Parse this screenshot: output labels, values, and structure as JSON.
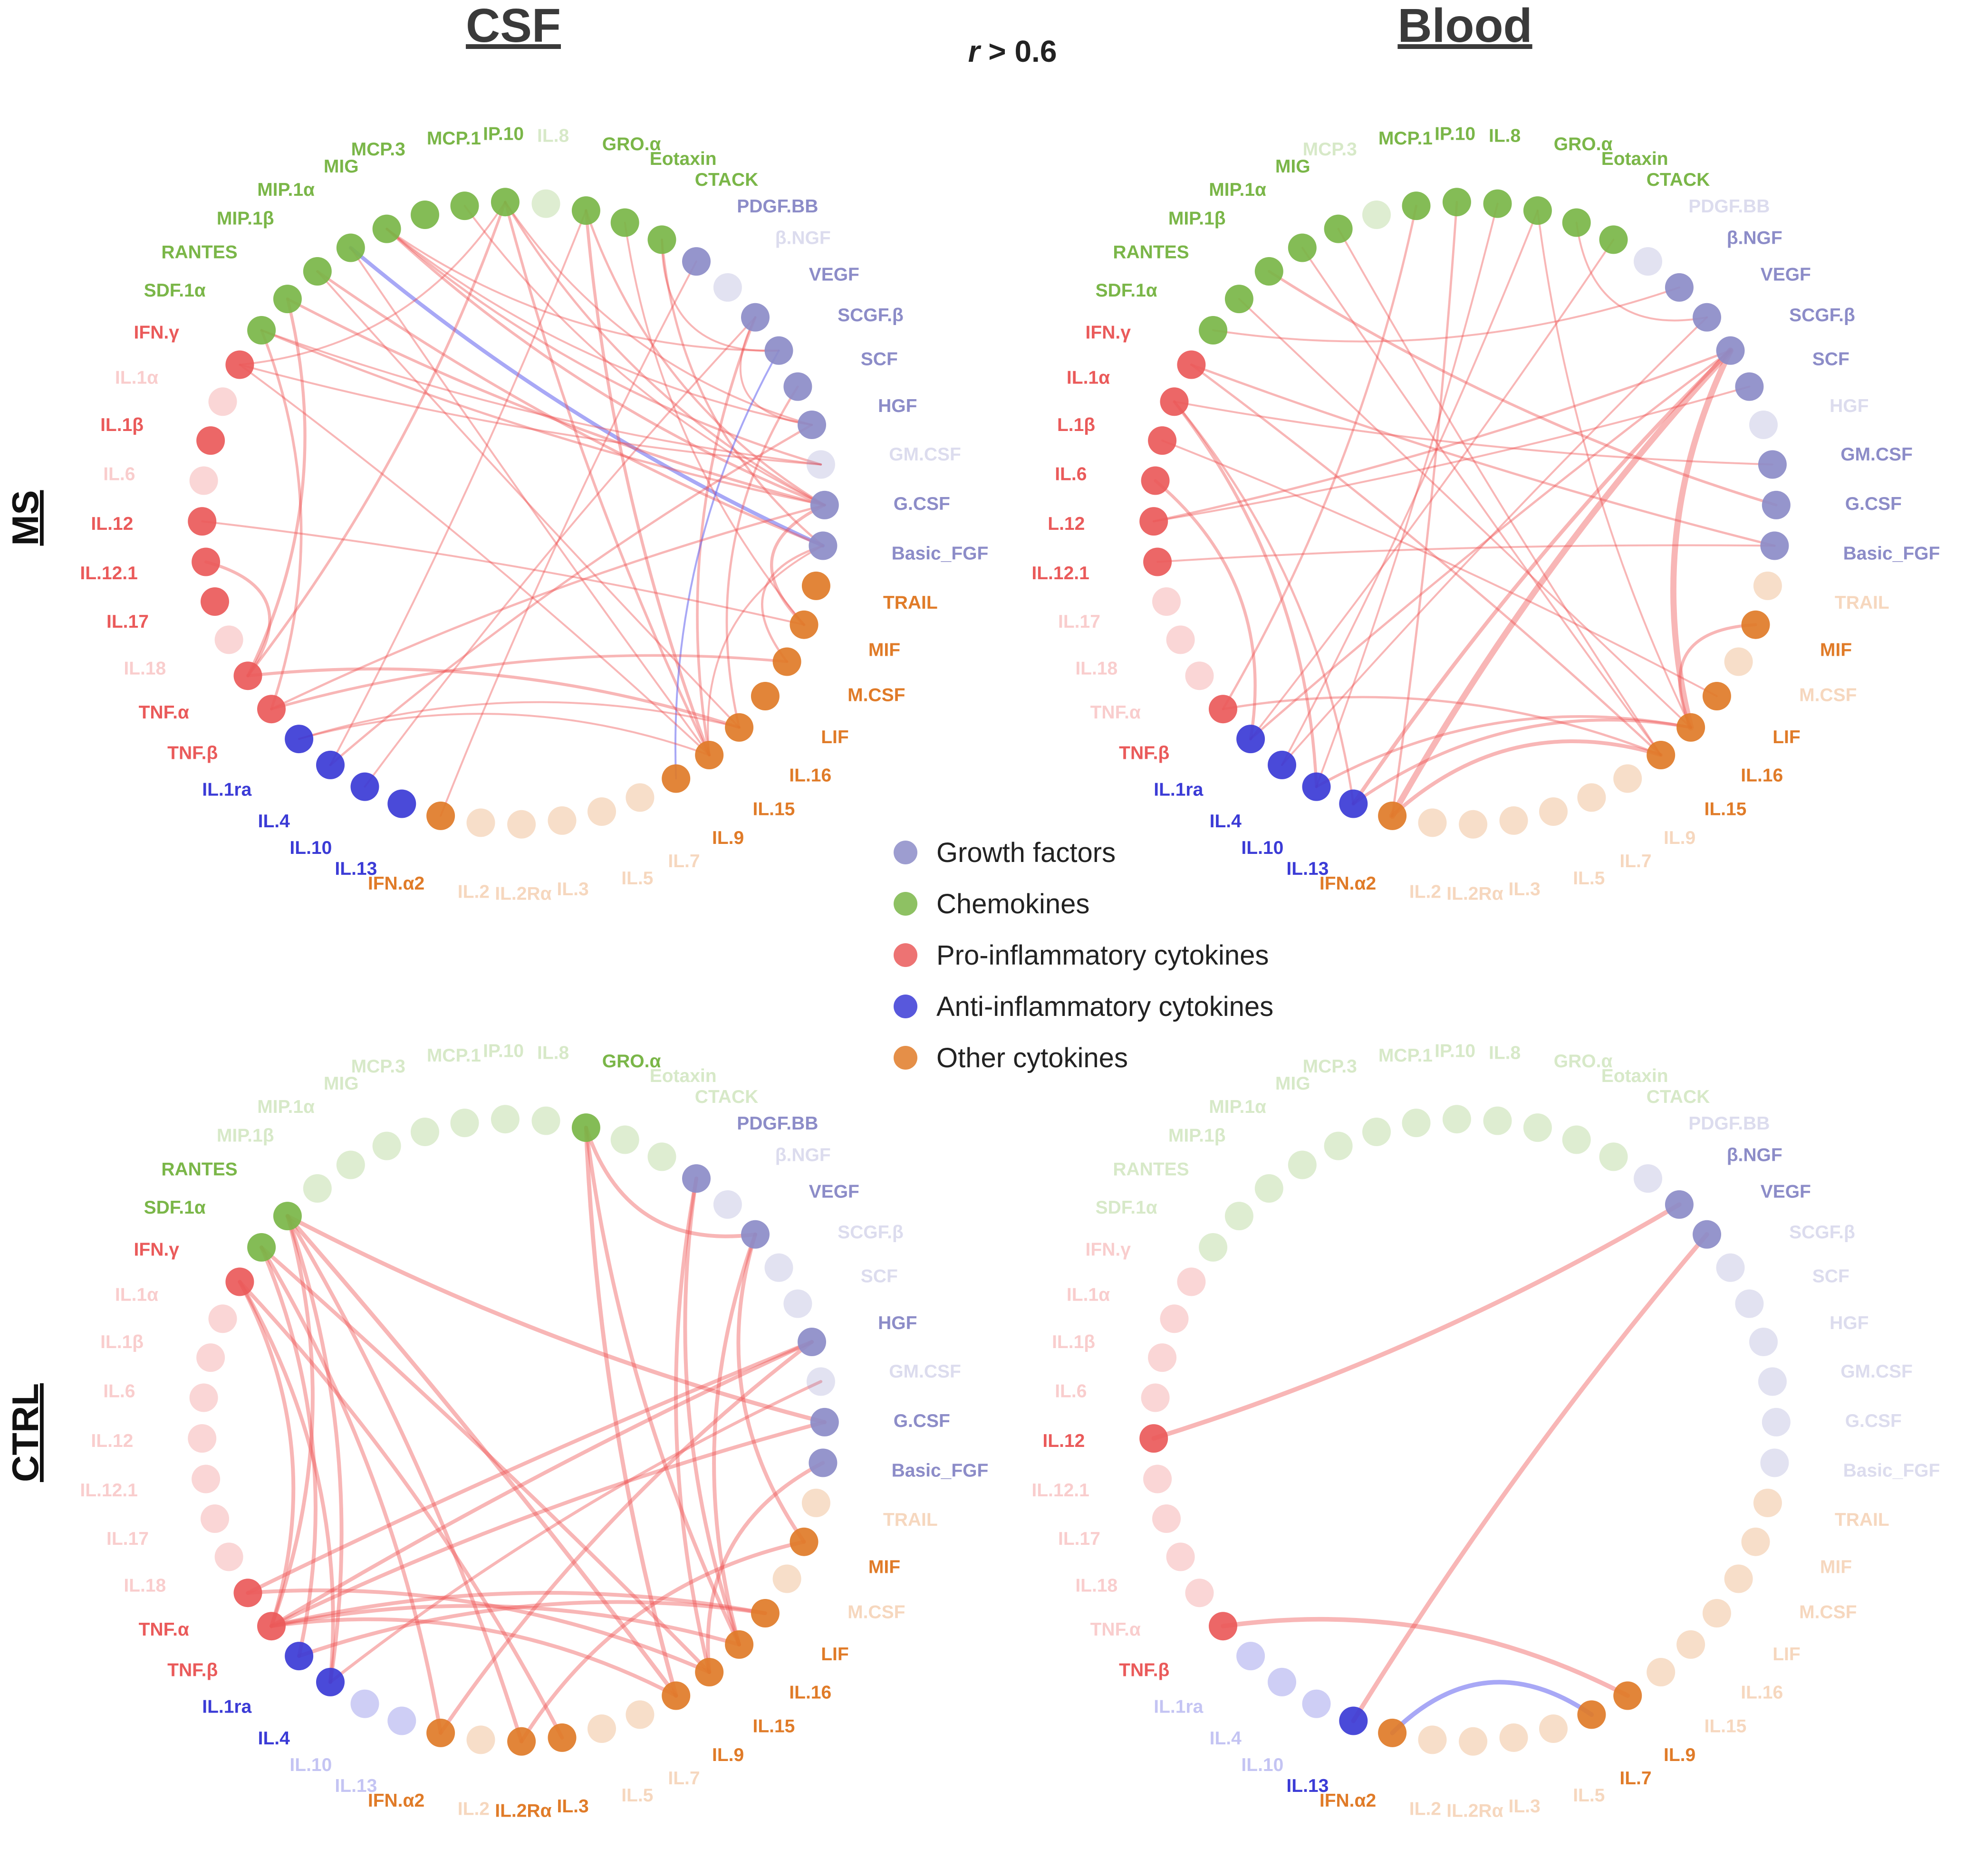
{
  "header": {
    "col_csf": "CSF",
    "col_blood": "Blood",
    "threshold_var": "r",
    "threshold_text": " > 0.6",
    "row_ms": "MS",
    "row_ctrl": "CTRL"
  },
  "legend": [
    {
      "label": "Growth factors",
      "color": "#8c8cc8"
    },
    {
      "label": "Chemokines",
      "color": "#7ab648"
    },
    {
      "label": "Pro-inflammatory cytokines",
      "color": "#ea5a5a"
    },
    {
      "label": "Anti-inflammatory cytokines",
      "color": "#3b3bd6"
    },
    {
      "label": "Other cytokines",
      "color": "#e07b28"
    }
  ],
  "colors": {
    "gf": "#8c8cc8",
    "chem": "#7ab648",
    "pro": "#ea5a5a",
    "anti": "#3b3bd6",
    "other": "#e07b28",
    "edge_pos": "#ee5050",
    "edge_neg": "#6060ee"
  },
  "node_names": {
    "csf": [
      "MCP.1",
      "IP.10",
      "IL.8",
      "GRO.α",
      "Eotaxin",
      "CTACK",
      "PDGF.BB",
      "β.NGF",
      "VEGF",
      "SCGF.β",
      "SCF",
      "HGF",
      "GM.CSF",
      "G.CSF",
      "Basic_FGF",
      "TRAIL",
      "MIF",
      "M.CSF",
      "LIF",
      "IL.16",
      "IL.15",
      "IL.9",
      "IL.7",
      "IL.5",
      "IL.3",
      "IL.2Rα",
      "IL.2",
      "IFN.α2",
      "IL.13",
      "IL.10",
      "IL.4",
      "IL.1ra",
      "TNF.β",
      "TNF.α",
      "IL.18",
      "IL.17",
      "IL.12.1",
      "IL.12",
      "IL.6",
      "IL.1β",
      "IL.1α",
      "IFN.γ",
      "SDF.1α",
      "RANTES",
      "MIP.1β",
      "MIP.1α",
      "MIG",
      "MCP.3"
    ],
    "blood": [
      "MCP.1",
      "IP.10",
      "IL.8",
      "GRO.α",
      "Eotaxin",
      "CTACK",
      "PDGF.BB",
      "β.NGF",
      "VEGF",
      "SCGF.β",
      "SCF",
      "HGF",
      "GM.CSF",
      "G.CSF",
      "Basic_FGF",
      "TRAIL",
      "MIF",
      "M.CSF",
      "LIF",
      "IL.16",
      "IL.15",
      "IL.9",
      "IL.7",
      "IL.5",
      "IL.3",
      "IL.2Rα",
      "IL.2",
      "IFN.α2",
      "IL.13",
      "IL.10",
      "IL.4",
      "IL.1ra",
      "TNF.β",
      "TNF.α",
      "IL.18",
      "IL.17",
      "IL.12.1",
      "L.12",
      "IL.6",
      "L.1β",
      "IL.1α",
      "IFN.γ",
      "SDF.1α",
      "RANTES",
      "MIP.1β",
      "MIP.1α",
      "MIG",
      "MCP.3"
    ],
    "blood_ctrl": [
      "MCP.1",
      "IP.10",
      "IL.8",
      "GRO.α",
      "Eotaxin",
      "CTACK",
      "PDGF.BB",
      "β.NGF",
      "VEGF",
      "SCGF.β",
      "SCF",
      "HGF",
      "GM.CSF",
      "G.CSF",
      "Basic_FGF",
      "TRAIL",
      "MIF",
      "M.CSF",
      "LIF",
      "IL.16",
      "IL.15",
      "IL.9",
      "IL.7",
      "IL.5",
      "IL.3",
      "IL.2Rα",
      "IL.2",
      "IFN.α2",
      "IL.13",
      "IL.10",
      "IL.4",
      "IL.1ra",
      "TNF.β",
      "TNF.α",
      "IL.18",
      "IL.17",
      "IL.12.1",
      "IL.12",
      "IL.6",
      "IL.1β",
      "IL.1α",
      "IFN.γ",
      "SDF.1α",
      "RANTES",
      "MIP.1β",
      "MIP.1α",
      "MIG",
      "MCP.3"
    ]
  },
  "node_groups": [
    "chem",
    "chem",
    "chem",
    "chem",
    "chem",
    "chem",
    "gf",
    "gf",
    "gf",
    "gf",
    "gf",
    "gf",
    "gf",
    "gf",
    "gf",
    "other",
    "other",
    "other",
    "other",
    "other",
    "other",
    "other",
    "other",
    "other",
    "other",
    "other",
    "other",
    "other",
    "anti",
    "anti",
    "anti",
    "anti",
    "pro",
    "pro",
    "pro",
    "pro",
    "pro",
    "pro",
    "pro",
    "pro",
    "pro",
    "pro",
    "chem",
    "chem",
    "chem",
    "chem",
    "chem",
    "chem"
  ],
  "panels": [
    {
      "id": "ms-csf",
      "names": "csf",
      "active": [
        0,
        1,
        3,
        4,
        5,
        6,
        8,
        9,
        10,
        11,
        13,
        14,
        15,
        16,
        17,
        18,
        19,
        20,
        21,
        27,
        28,
        29,
        30,
        31,
        32,
        33,
        35,
        36,
        37,
        39,
        41,
        42,
        43,
        44,
        45,
        46,
        47
      ],
      "edges": [
        {
          "a": 45,
          "b": 14,
          "w": 2,
          "s": "neg"
        },
        {
          "a": 46,
          "b": 13,
          "w": 1.4,
          "s": "pos"
        },
        {
          "a": 46,
          "b": 12,
          "w": 1.2,
          "s": "pos"
        },
        {
          "a": 46,
          "b": 11,
          "w": 1,
          "s": "pos"
        },
        {
          "a": 46,
          "b": 9,
          "w": 1,
          "s": "pos"
        },
        {
          "a": 1,
          "b": 13,
          "w": 1.2,
          "s": "pos"
        },
        {
          "a": 1,
          "b": 11,
          "w": 1,
          "s": "pos"
        },
        {
          "a": 1,
          "b": 33,
          "w": 1.4,
          "s": "pos"
        },
        {
          "a": 1,
          "b": 41,
          "w": 1,
          "s": "pos"
        },
        {
          "a": 1,
          "b": 20,
          "w": 1.4,
          "s": "pos"
        },
        {
          "a": 3,
          "b": 20,
          "w": 1.6,
          "s": "pos"
        },
        {
          "a": 3,
          "b": 13,
          "w": 1.2,
          "s": "pos"
        },
        {
          "a": 3,
          "b": 30,
          "w": 1,
          "s": "pos"
        },
        {
          "a": 4,
          "b": 16,
          "w": 1,
          "s": "pos"
        },
        {
          "a": 5,
          "b": 14,
          "w": 1.2,
          "s": "pos"
        },
        {
          "a": 5,
          "b": 9,
          "w": 1,
          "s": "pos"
        },
        {
          "a": 8,
          "b": 20,
          "w": 1.4,
          "s": "pos"
        },
        {
          "a": 8,
          "b": 29,
          "w": 1,
          "s": "pos"
        },
        {
          "a": 8,
          "b": 11,
          "w": 1,
          "s": "pos"
        },
        {
          "a": 9,
          "b": 21,
          "w": 1,
          "s": "neg"
        },
        {
          "a": 10,
          "b": 19,
          "w": 1.2,
          "s": "pos"
        },
        {
          "a": 11,
          "b": 30,
          "w": 1.2,
          "s": "pos"
        },
        {
          "a": 13,
          "b": 16,
          "w": 1.6,
          "s": "pos"
        },
        {
          "a": 13,
          "b": 32,
          "w": 1.2,
          "s": "pos"
        },
        {
          "a": 13,
          "b": 42,
          "w": 1.2,
          "s": "pos"
        },
        {
          "a": 12,
          "b": 41,
          "w": 1,
          "s": "pos"
        },
        {
          "a": 14,
          "b": 17,
          "w": 1.2,
          "s": "pos"
        },
        {
          "a": 14,
          "b": 20,
          "w": 1,
          "s": "pos"
        },
        {
          "a": 16,
          "b": 37,
          "w": 1,
          "s": "pos"
        },
        {
          "a": 17,
          "b": 32,
          "w": 1.4,
          "s": "pos"
        },
        {
          "a": 19,
          "b": 33,
          "w": 1.6,
          "s": "pos"
        },
        {
          "a": 20,
          "b": 31,
          "w": 1,
          "s": "pos"
        },
        {
          "a": 19,
          "b": 31,
          "w": 1,
          "s": "pos"
        },
        {
          "a": 41,
          "b": 20,
          "w": 1,
          "s": "pos"
        },
        {
          "a": 42,
          "b": 32,
          "w": 1.4,
          "s": "pos"
        },
        {
          "a": 43,
          "b": 33,
          "w": 1.6,
          "s": "pos"
        },
        {
          "a": 43,
          "b": 13,
          "w": 1.4,
          "s": "pos"
        },
        {
          "a": 44,
          "b": 14,
          "w": 1.4,
          "s": "pos"
        },
        {
          "a": 44,
          "b": 19,
          "w": 1,
          "s": "pos"
        },
        {
          "a": 42,
          "b": 12,
          "w": 1,
          "s": "pos"
        },
        {
          "a": 33,
          "b": 36,
          "w": 1.6,
          "s": "pos"
        },
        {
          "a": 0,
          "b": 13,
          "w": 1,
          "s": "pos"
        },
        {
          "a": 45,
          "b": 20,
          "w": 1,
          "s": "pos"
        },
        {
          "a": 6,
          "b": 27,
          "w": 1,
          "s": "pos"
        }
      ]
    },
    {
      "id": "ms-blood",
      "names": "blood",
      "active": [
        0,
        1,
        2,
        3,
        4,
        5,
        7,
        8,
        9,
        10,
        12,
        13,
        14,
        16,
        18,
        19,
        20,
        27,
        28,
        29,
        30,
        31,
        32,
        36,
        37,
        38,
        39,
        40,
        41,
        42,
        43,
        44,
        45,
        46
      ],
      "edges": [
        {
          "a": 9,
          "b": 27,
          "w": 3.2,
          "s": "pos"
        },
        {
          "a": 9,
          "b": 19,
          "w": 3.2,
          "s": "pos"
        },
        {
          "a": 9,
          "b": 28,
          "w": 2,
          "s": "pos"
        },
        {
          "a": 9,
          "b": 37,
          "w": 1.2,
          "s": "pos"
        },
        {
          "a": 9,
          "b": 31,
          "w": 1.2,
          "s": "pos"
        },
        {
          "a": 20,
          "b": 27,
          "w": 2,
          "s": "pos"
        },
        {
          "a": 19,
          "b": 28,
          "w": 1.6,
          "s": "pos"
        },
        {
          "a": 19,
          "b": 29,
          "w": 1.4,
          "s": "pos"
        },
        {
          "a": 40,
          "b": 29,
          "w": 1.6,
          "s": "pos"
        },
        {
          "a": 40,
          "b": 28,
          "w": 1.2,
          "s": "pos"
        },
        {
          "a": 38,
          "b": 31,
          "w": 1.6,
          "s": "pos"
        },
        {
          "a": 41,
          "b": 20,
          "w": 1.2,
          "s": "pos"
        },
        {
          "a": 41,
          "b": 14,
          "w": 1.2,
          "s": "pos"
        },
        {
          "a": 3,
          "b": 30,
          "w": 1,
          "s": "pos"
        },
        {
          "a": 3,
          "b": 19,
          "w": 1,
          "s": "pos"
        },
        {
          "a": 4,
          "b": 8,
          "w": 1,
          "s": "pos"
        },
        {
          "a": 1,
          "b": 27,
          "w": 1.2,
          "s": "pos"
        },
        {
          "a": 0,
          "b": 32,
          "w": 1.2,
          "s": "pos"
        },
        {
          "a": 44,
          "b": 13,
          "w": 1.4,
          "s": "pos"
        },
        {
          "a": 45,
          "b": 20,
          "w": 1,
          "s": "pos"
        },
        {
          "a": 46,
          "b": 20,
          "w": 1,
          "s": "pos"
        },
        {
          "a": 42,
          "b": 7,
          "w": 1,
          "s": "pos"
        },
        {
          "a": 36,
          "b": 14,
          "w": 1,
          "s": "pos"
        },
        {
          "a": 16,
          "b": 19,
          "w": 1.6,
          "s": "pos"
        },
        {
          "a": 12,
          "b": 40,
          "w": 1,
          "s": "pos"
        },
        {
          "a": 5,
          "b": 31,
          "w": 1,
          "s": "pos"
        },
        {
          "a": 2,
          "b": 29,
          "w": 1,
          "s": "pos"
        },
        {
          "a": 8,
          "b": 30,
          "w": 1,
          "s": "pos"
        },
        {
          "a": 10,
          "b": 37,
          "w": 1,
          "s": "pos"
        },
        {
          "a": 43,
          "b": 19,
          "w": 1,
          "s": "pos"
        },
        {
          "a": 18,
          "b": 39,
          "w": 1,
          "s": "pos"
        },
        {
          "a": 32,
          "b": 20,
          "w": 1.2,
          "s": "pos"
        }
      ]
    },
    {
      "id": "ctrl-csf",
      "names": "csf",
      "active": [
        3,
        6,
        8,
        11,
        13,
        14,
        16,
        18,
        19,
        20,
        21,
        27,
        30,
        31,
        32,
        33,
        41,
        42,
        43,
        25,
        24
      ],
      "edges": [
        {
          "a": 43,
          "b": 21,
          "w": 2.2,
          "s": "pos"
        },
        {
          "a": 43,
          "b": 13,
          "w": 2.2,
          "s": "pos"
        },
        {
          "a": 43,
          "b": 30,
          "w": 2,
          "s": "pos"
        },
        {
          "a": 43,
          "b": 32,
          "w": 2,
          "s": "pos"
        },
        {
          "a": 43,
          "b": 25,
          "w": 2,
          "s": "pos"
        },
        {
          "a": 42,
          "b": 27,
          "w": 2,
          "s": "pos"
        },
        {
          "a": 42,
          "b": 20,
          "w": 2,
          "s": "pos"
        },
        {
          "a": 41,
          "b": 24,
          "w": 2,
          "s": "pos"
        },
        {
          "a": 3,
          "b": 21,
          "w": 2.2,
          "s": "pos"
        },
        {
          "a": 3,
          "b": 8,
          "w": 2,
          "s": "pos"
        },
        {
          "a": 6,
          "b": 20,
          "w": 2,
          "s": "pos"
        },
        {
          "a": 6,
          "b": 19,
          "w": 2,
          "s": "pos"
        },
        {
          "a": 8,
          "b": 19,
          "w": 2,
          "s": "pos"
        },
        {
          "a": 8,
          "b": 16,
          "w": 2,
          "s": "pos"
        },
        {
          "a": 11,
          "b": 33,
          "w": 2,
          "s": "pos"
        },
        {
          "a": 11,
          "b": 32,
          "w": 2,
          "s": "pos"
        },
        {
          "a": 11,
          "b": 27,
          "w": 2,
          "s": "pos"
        },
        {
          "a": 12,
          "b": 30,
          "w": 1.6,
          "s": "pos"
        },
        {
          "a": 13,
          "b": 32,
          "w": 2,
          "s": "pos"
        },
        {
          "a": 14,
          "b": 20,
          "w": 2,
          "s": "pos"
        },
        {
          "a": 16,
          "b": 25,
          "w": 2,
          "s": "pos"
        },
        {
          "a": 18,
          "b": 32,
          "w": 2,
          "s": "pos"
        },
        {
          "a": 18,
          "b": 31,
          "w": 2,
          "s": "pos"
        },
        {
          "a": 19,
          "b": 32,
          "w": 2,
          "s": "pos"
        },
        {
          "a": 20,
          "b": 33,
          "w": 2,
          "s": "pos"
        },
        {
          "a": 21,
          "b": 32,
          "w": 2,
          "s": "pos"
        },
        {
          "a": 30,
          "b": 41,
          "w": 2,
          "s": "pos"
        },
        {
          "a": 31,
          "b": 42,
          "w": 2,
          "s": "pos"
        },
        {
          "a": 41,
          "b": 32,
          "w": 2,
          "s": "pos"
        },
        {
          "a": 3,
          "b": 19,
          "w": 2,
          "s": "pos"
        }
      ]
    },
    {
      "id": "ctrl-blood",
      "names": "blood_ctrl",
      "active": [
        7,
        8,
        21,
        22,
        27,
        28,
        32,
        37
      ],
      "edges": [
        {
          "a": 37,
          "b": 7,
          "w": 2.4,
          "s": "pos"
        },
        {
          "a": 8,
          "b": 28,
          "w": 2.4,
          "s": "pos"
        },
        {
          "a": 32,
          "b": 21,
          "w": 2.4,
          "s": "pos"
        },
        {
          "a": 27,
          "b": 22,
          "w": 2.4,
          "s": "neg"
        }
      ]
    }
  ]
}
